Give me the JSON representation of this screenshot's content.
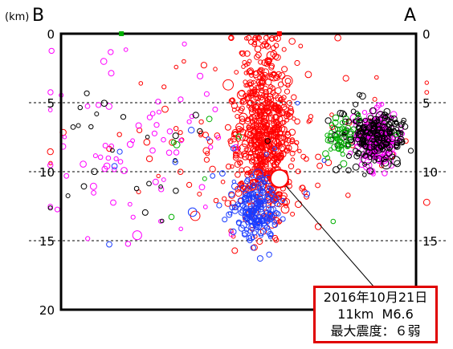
{
  "chart_data": {
    "type": "scatter",
    "title": "",
    "ylabel_unit": "(km)",
    "left_label": "B",
    "right_label": "A",
    "y_axis": {
      "ylim": [
        0,
        20
      ],
      "inverted": true,
      "ticks": [
        "0",
        "5",
        "10",
        "15",
        "20"
      ],
      "right_ticks": [
        "0",
        "5",
        "10",
        "15"
      ]
    },
    "grid": "dashed horizontal lines at 5, 10, 15",
    "x_axis": {
      "xlim": [
        0,
        100
      ],
      "labels": []
    },
    "series": [
      {
        "color": "#ff0000",
        "clusters": [
          {
            "x_center": 57,
            "x_spread": 4,
            "depth_center": 7.5,
            "depth_spread": 3.2,
            "count": 650
          },
          {
            "x_center": 57,
            "x_spread": 20,
            "depth_center": 8,
            "depth_spread": 3.5,
            "count": 120
          }
        ]
      },
      {
        "color": "#ff00ff",
        "clusters": [
          {
            "x_center": 89,
            "x_spread": 2.5,
            "depth_center": 7.5,
            "depth_spread": 0.9,
            "count": 260
          },
          {
            "x_center": 20,
            "x_spread": 14,
            "depth_center": 8.5,
            "depth_spread": 3,
            "count": 70
          }
        ]
      },
      {
        "color": "#000000",
        "clusters": [
          {
            "x_center": 88,
            "x_spread": 5,
            "depth_center": 7.5,
            "depth_spread": 1.1,
            "count": 220
          },
          {
            "x_center": 20,
            "x_spread": 14,
            "depth_center": 8,
            "depth_spread": 3,
            "count": 25
          }
        ]
      },
      {
        "color": "#1a3cff",
        "clusters": [
          {
            "x_center": 55,
            "x_spread": 3,
            "depth_center": 12.7,
            "depth_spread": 1,
            "count": 180
          },
          {
            "x_center": 35,
            "x_spread": 20,
            "depth_center": 10,
            "depth_spread": 3,
            "count": 20
          }
        ]
      },
      {
        "color": "#00b000",
        "clusters": [
          {
            "x_center": 79,
            "x_spread": 2,
            "depth_center": 7.5,
            "depth_spread": 0.8,
            "count": 45
          },
          {
            "x_center": 40,
            "x_spread": 25,
            "depth_center": 9,
            "depth_spread": 3,
            "count": 8
          }
        ]
      }
    ],
    "mainshock": {
      "x": 61.5,
      "depth": 10.5,
      "depth_km": 11,
      "magnitude": 6.6,
      "color": "#ff0000"
    },
    "top_markers": [
      {
        "x": 17,
        "color": "#00b000"
      },
      {
        "x": 61.5,
        "color": "#ff0000"
      }
    ],
    "annotation": {
      "line1": "2016年10月21日",
      "line2": "11km  M6.6",
      "line3": "最大震度：６弱",
      "border_color": "#e00000"
    }
  }
}
